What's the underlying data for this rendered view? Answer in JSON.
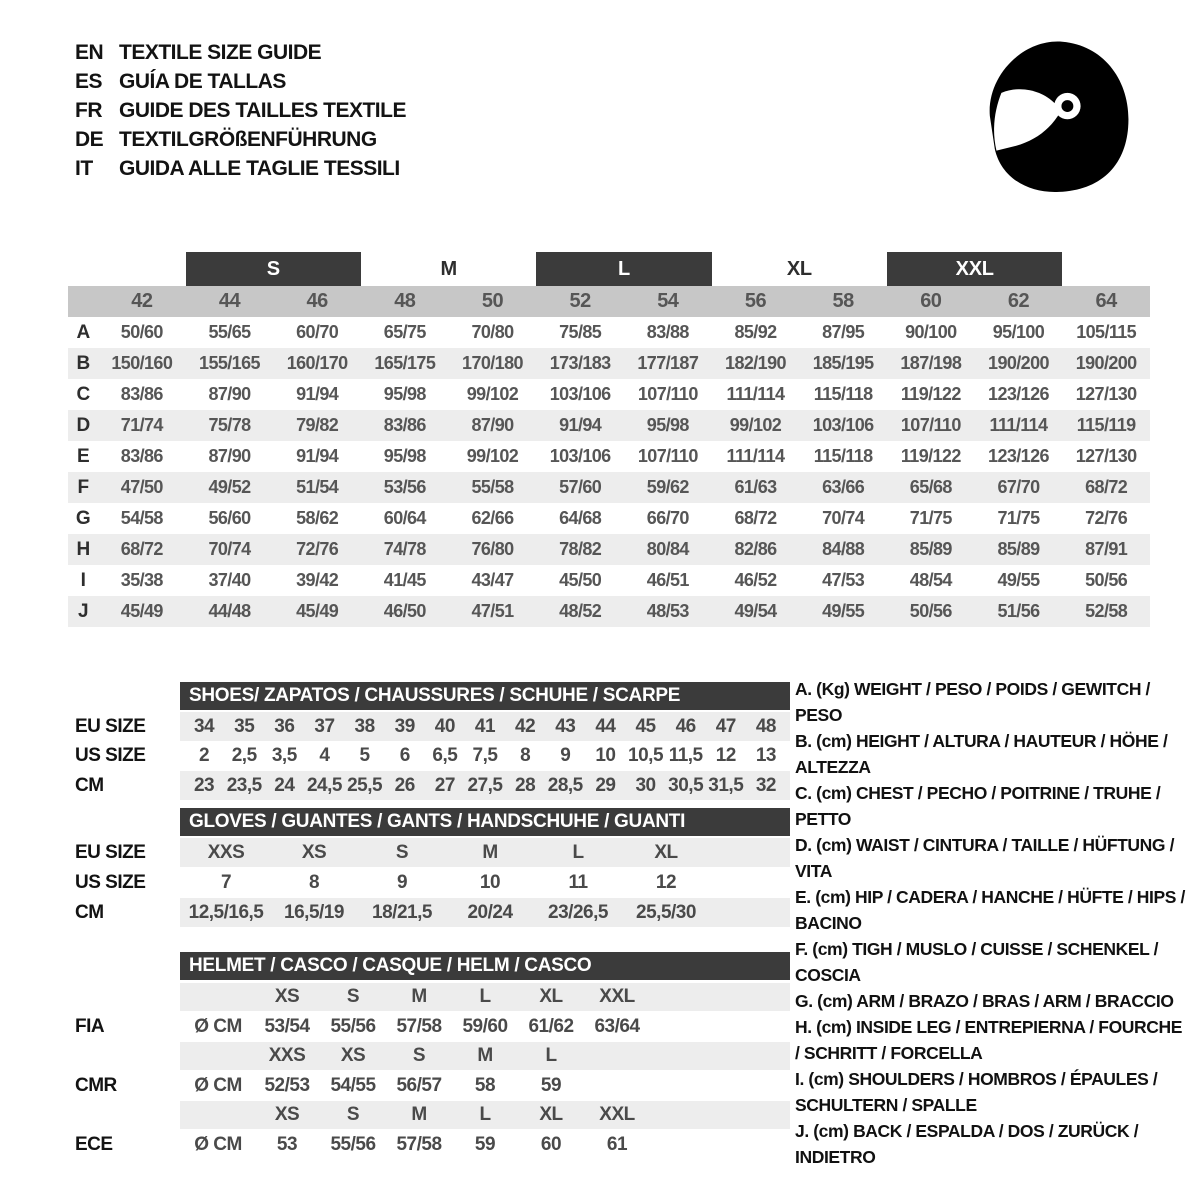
{
  "title_block": {
    "entries": [
      {
        "code": "EN",
        "title": "TEXTILE SIZE GUIDE"
      },
      {
        "code": "ES",
        "title": "GUÍA DE TALLAS"
      },
      {
        "code": "FR",
        "title": "GUIDE DES TAILLES TEXTILE"
      },
      {
        "code": "DE",
        "title": "TEXTILGRÖßENFÜHRUNG"
      },
      {
        "code": "IT",
        "title": "GUIDA ALLE TAGLIE TESSILI"
      }
    ]
  },
  "icons": {
    "helmet": "racing-helmet-icon"
  },
  "apparel_table": {
    "group_headers": [
      {
        "label": "S",
        "boxed": true,
        "columns": [
          "44",
          "46"
        ]
      },
      {
        "label": "M",
        "boxed": false,
        "columns": [
          "48",
          "50"
        ]
      },
      {
        "label": "L",
        "boxed": true,
        "columns": [
          "52",
          "54"
        ]
      },
      {
        "label": "XL",
        "boxed": false,
        "columns": [
          "56",
          "58"
        ]
      },
      {
        "label": "XXL",
        "boxed": true,
        "columns": [
          "60",
          "62"
        ]
      }
    ],
    "sizes": [
      "42",
      "44",
      "46",
      "48",
      "50",
      "52",
      "54",
      "56",
      "58",
      "60",
      "62",
      "64"
    ],
    "rows": [
      {
        "letter": "A",
        "values": [
          "50/60",
          "55/65",
          "60/70",
          "65/75",
          "70/80",
          "75/85",
          "83/88",
          "85/92",
          "87/95",
          "90/100",
          "95/100",
          "105/115"
        ]
      },
      {
        "letter": "B",
        "values": [
          "150/160",
          "155/165",
          "160/170",
          "165/175",
          "170/180",
          "173/183",
          "177/187",
          "182/190",
          "185/195",
          "187/198",
          "190/200",
          "190/200"
        ]
      },
      {
        "letter": "C",
        "values": [
          "83/86",
          "87/90",
          "91/94",
          "95/98",
          "99/102",
          "103/106",
          "107/110",
          "111/114",
          "115/118",
          "119/122",
          "123/126",
          "127/130"
        ]
      },
      {
        "letter": "D",
        "values": [
          "71/74",
          "75/78",
          "79/82",
          "83/86",
          "87/90",
          "91/94",
          "95/98",
          "99/102",
          "103/106",
          "107/110",
          "111/114",
          "115/119"
        ]
      },
      {
        "letter": "E",
        "values": [
          "83/86",
          "87/90",
          "91/94",
          "95/98",
          "99/102",
          "103/106",
          "107/110",
          "111/114",
          "115/118",
          "119/122",
          "123/126",
          "127/130"
        ]
      },
      {
        "letter": "F",
        "values": [
          "47/50",
          "49/52",
          "51/54",
          "53/56",
          "55/58",
          "57/60",
          "59/62",
          "61/63",
          "63/66",
          "65/68",
          "67/70",
          "68/72"
        ]
      },
      {
        "letter": "G",
        "values": [
          "54/58",
          "56/60",
          "58/62",
          "60/64",
          "62/66",
          "64/68",
          "66/70",
          "68/72",
          "70/74",
          "71/75",
          "71/75",
          "72/76"
        ]
      },
      {
        "letter": "H",
        "values": [
          "68/72",
          "70/74",
          "72/76",
          "74/78",
          "76/80",
          "78/82",
          "80/84",
          "82/86",
          "84/88",
          "85/89",
          "85/89",
          "87/91"
        ]
      },
      {
        "letter": "I",
        "values": [
          "35/38",
          "37/40",
          "39/42",
          "41/45",
          "43/47",
          "45/50",
          "46/51",
          "46/52",
          "47/53",
          "48/54",
          "49/55",
          "50/56"
        ]
      },
      {
        "letter": "J",
        "values": [
          "45/49",
          "44/48",
          "45/49",
          "46/50",
          "47/51",
          "48/52",
          "48/53",
          "49/54",
          "49/55",
          "50/56",
          "51/56",
          "52/58"
        ]
      }
    ]
  },
  "shoes_table": {
    "title": "SHOES/ ZAPATOS / CHAUSSURES / SCHUHE / SCARPE",
    "row_labels": [
      "EU SIZE",
      "US SIZE",
      "CM"
    ],
    "eu": [
      "34",
      "35",
      "36",
      "37",
      "38",
      "39",
      "40",
      "41",
      "42",
      "43",
      "44",
      "45",
      "46",
      "47",
      "48"
    ],
    "us": [
      "2",
      "2,5",
      "3,5",
      "4",
      "5",
      "6",
      "6,5",
      "7,5",
      "8",
      "9",
      "10",
      "10,5",
      "11,5",
      "12",
      "13"
    ],
    "cm": [
      "23",
      "23,5",
      "24",
      "24,5",
      "25,5",
      "26",
      "27",
      "27,5",
      "28",
      "28,5",
      "29",
      "30",
      "30,5",
      "31,5",
      "32"
    ]
  },
  "gloves_table": {
    "title": "GLOVES / GUANTES / GANTS / HANDSCHUHE / GUANTI",
    "row_labels": [
      "EU SIZE",
      "US SIZE",
      "CM"
    ],
    "eu": [
      "XXS",
      "XS",
      "S",
      "M",
      "L",
      "XL"
    ],
    "us": [
      "7",
      "8",
      "9",
      "10",
      "11",
      "12"
    ],
    "cm": [
      "12,5/16,5",
      "16,5/19",
      "18/21,5",
      "20/24",
      "23/26,5",
      "25,5/30"
    ]
  },
  "helmet_table": {
    "title": "HELMET / CASCO / CASQUE / HELM / CASCO",
    "diameter_label": "Ø CM",
    "standards": [
      {
        "name": "FIA",
        "sizes": [
          "XS",
          "S",
          "M",
          "L",
          "XL",
          "XXL"
        ],
        "values": [
          "53/54",
          "55/56",
          "57/58",
          "59/60",
          "61/62",
          "63/64"
        ]
      },
      {
        "name": "CMR",
        "sizes": [
          "XXS",
          "XS",
          "S",
          "M",
          "L",
          ""
        ],
        "values": [
          "52/53",
          "54/55",
          "56/57",
          "58",
          "59",
          ""
        ]
      },
      {
        "name": "ECE",
        "sizes": [
          "XS",
          "S",
          "M",
          "L",
          "XL",
          "XXL"
        ],
        "values": [
          "53",
          "55/56",
          "57/58",
          "59",
          "60",
          "61"
        ]
      }
    ]
  },
  "legend": {
    "items": [
      "A. (Kg) WEIGHT / PESO / POIDS / GEWITCH / PESO",
      "B. (cm) HEIGHT / ALTURA / HAUTEUR / HÖHE / ALTEZZA",
      "C. (cm) CHEST / PECHO / POITRINE / TRUHE / PETTO",
      "D. (cm) WAIST / CINTURA / TAILLE / HÜFTUNG / VITA",
      "E. (cm) HIP / CADERA / HANCHE / HÜFTE / HIPS / BACINO",
      "F. (cm) TIGH / MUSLO / CUISSE / SCHENKEL / COSCIA",
      "G. (cm) ARM / BRAZO / BRAS / ARM / BRACCIO",
      "H. (cm) INSIDE LEG / ENTREPIERNA / FOURCHE / SCHRITT / FORCELLA",
      "I. (cm) SHOULDERS / HOMBROS / ÉPAULES / SCHULTERN / SPALLE",
      "J. (cm) BACK / ESPALDA / DOS / ZURÜCK / INDIETRO"
    ]
  },
  "colors": {
    "section_bar": "#3b3b3b",
    "size_band": "#c7c7c7",
    "stripe": "#ededed",
    "helmet_icon": "#000000"
  }
}
